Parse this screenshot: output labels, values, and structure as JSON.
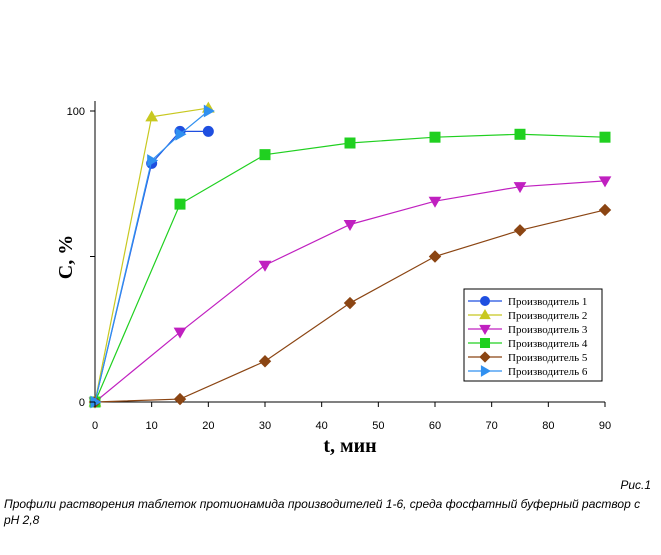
{
  "chart_data": {
    "type": "line",
    "xlabel": "t, мин",
    "ylabel": "C, %",
    "xlim": [
      0,
      90
    ],
    "ylim": [
      0,
      100
    ],
    "xticks": [
      0,
      10,
      20,
      30,
      40,
      50,
      60,
      70,
      80,
      90
    ],
    "yticks": [
      0,
      50,
      100
    ],
    "ytick_labels": [
      "0",
      "",
      "100"
    ],
    "grid": false,
    "legend_position": "bottom-right",
    "series": [
      {
        "name": "Производитель 1",
        "color": "#1f4fe0",
        "marker": "circle",
        "x": [
          0,
          10,
          15,
          20
        ],
        "y": [
          0,
          82,
          93,
          93
        ]
      },
      {
        "name": "Производитель 2",
        "color": "#c8c820",
        "marker": "triangle-up",
        "x": [
          0,
          10,
          20
        ],
        "y": [
          0,
          98,
          101
        ]
      },
      {
        "name": "Производитель 3",
        "color": "#c020c0",
        "marker": "triangle-down",
        "x": [
          0,
          15,
          30,
          45,
          60,
          75,
          90
        ],
        "y": [
          0,
          24,
          47,
          61,
          69,
          74,
          76
        ]
      },
      {
        "name": "Производитель 4",
        "color": "#20d020",
        "marker": "square",
        "x": [
          0,
          15,
          30,
          45,
          60,
          75,
          90
        ],
        "y": [
          0,
          68,
          85,
          89,
          91,
          92,
          91
        ]
      },
      {
        "name": "Производитель 5",
        "color": "#8b4513",
        "marker": "diamond",
        "x": [
          0,
          15,
          30,
          45,
          60,
          75,
          90
        ],
        "y": [
          0,
          1,
          14,
          34,
          50,
          59,
          66
        ]
      },
      {
        "name": "Производитель 6",
        "color": "#3090f0",
        "marker": "triangle-right",
        "x": [
          0,
          10,
          15,
          20
        ],
        "y": [
          0,
          83,
          92,
          100
        ]
      }
    ]
  },
  "figure_label": "Рис.1",
  "caption": "Профили растворения таблеток протионамида производителей 1-6, среда фосфатный буферный раствор с рН 2,8"
}
